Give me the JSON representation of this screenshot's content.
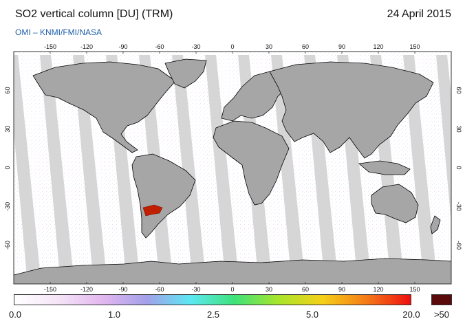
{
  "title": "SO2 vertical column [DU] (TRM)",
  "date": "24 April 2015",
  "credit": "OMI  –  KNMI/FMI/NASA",
  "map": {
    "lon_ticks": [
      "-150",
      "-120",
      "-90",
      "-60",
      "-30",
      "0",
      "30",
      "60",
      "90",
      "120",
      "150"
    ],
    "lat_ticks": [
      "60",
      "30",
      "0",
      "-30",
      "-60"
    ],
    "colors": {
      "ocean": "#ffffff",
      "swath_gap": "#d2d2d2",
      "land_gap": "#a6a6a6",
      "coast": "#000000",
      "hotspot": "#c02000"
    }
  },
  "colorbar": {
    "stops": [
      "#ffffff",
      "#f5e4f7",
      "#e3b7ef",
      "#a3a0ea",
      "#5ce8f2",
      "#3ee27a",
      "#a8e52a",
      "#f5d018",
      "#f57a18",
      "#ee1010"
    ],
    "over_color": "#5a0a0a",
    "labels": [
      {
        "value": "0.0",
        "pos": 0.0
      },
      {
        "value": "1.0",
        "pos": 0.25
      },
      {
        "value": "2.5",
        "pos": 0.5
      },
      {
        "value": "5.0",
        "pos": 0.75
      },
      {
        "value": "20.0",
        "pos": 1.0
      }
    ],
    "over_label": ">50"
  }
}
